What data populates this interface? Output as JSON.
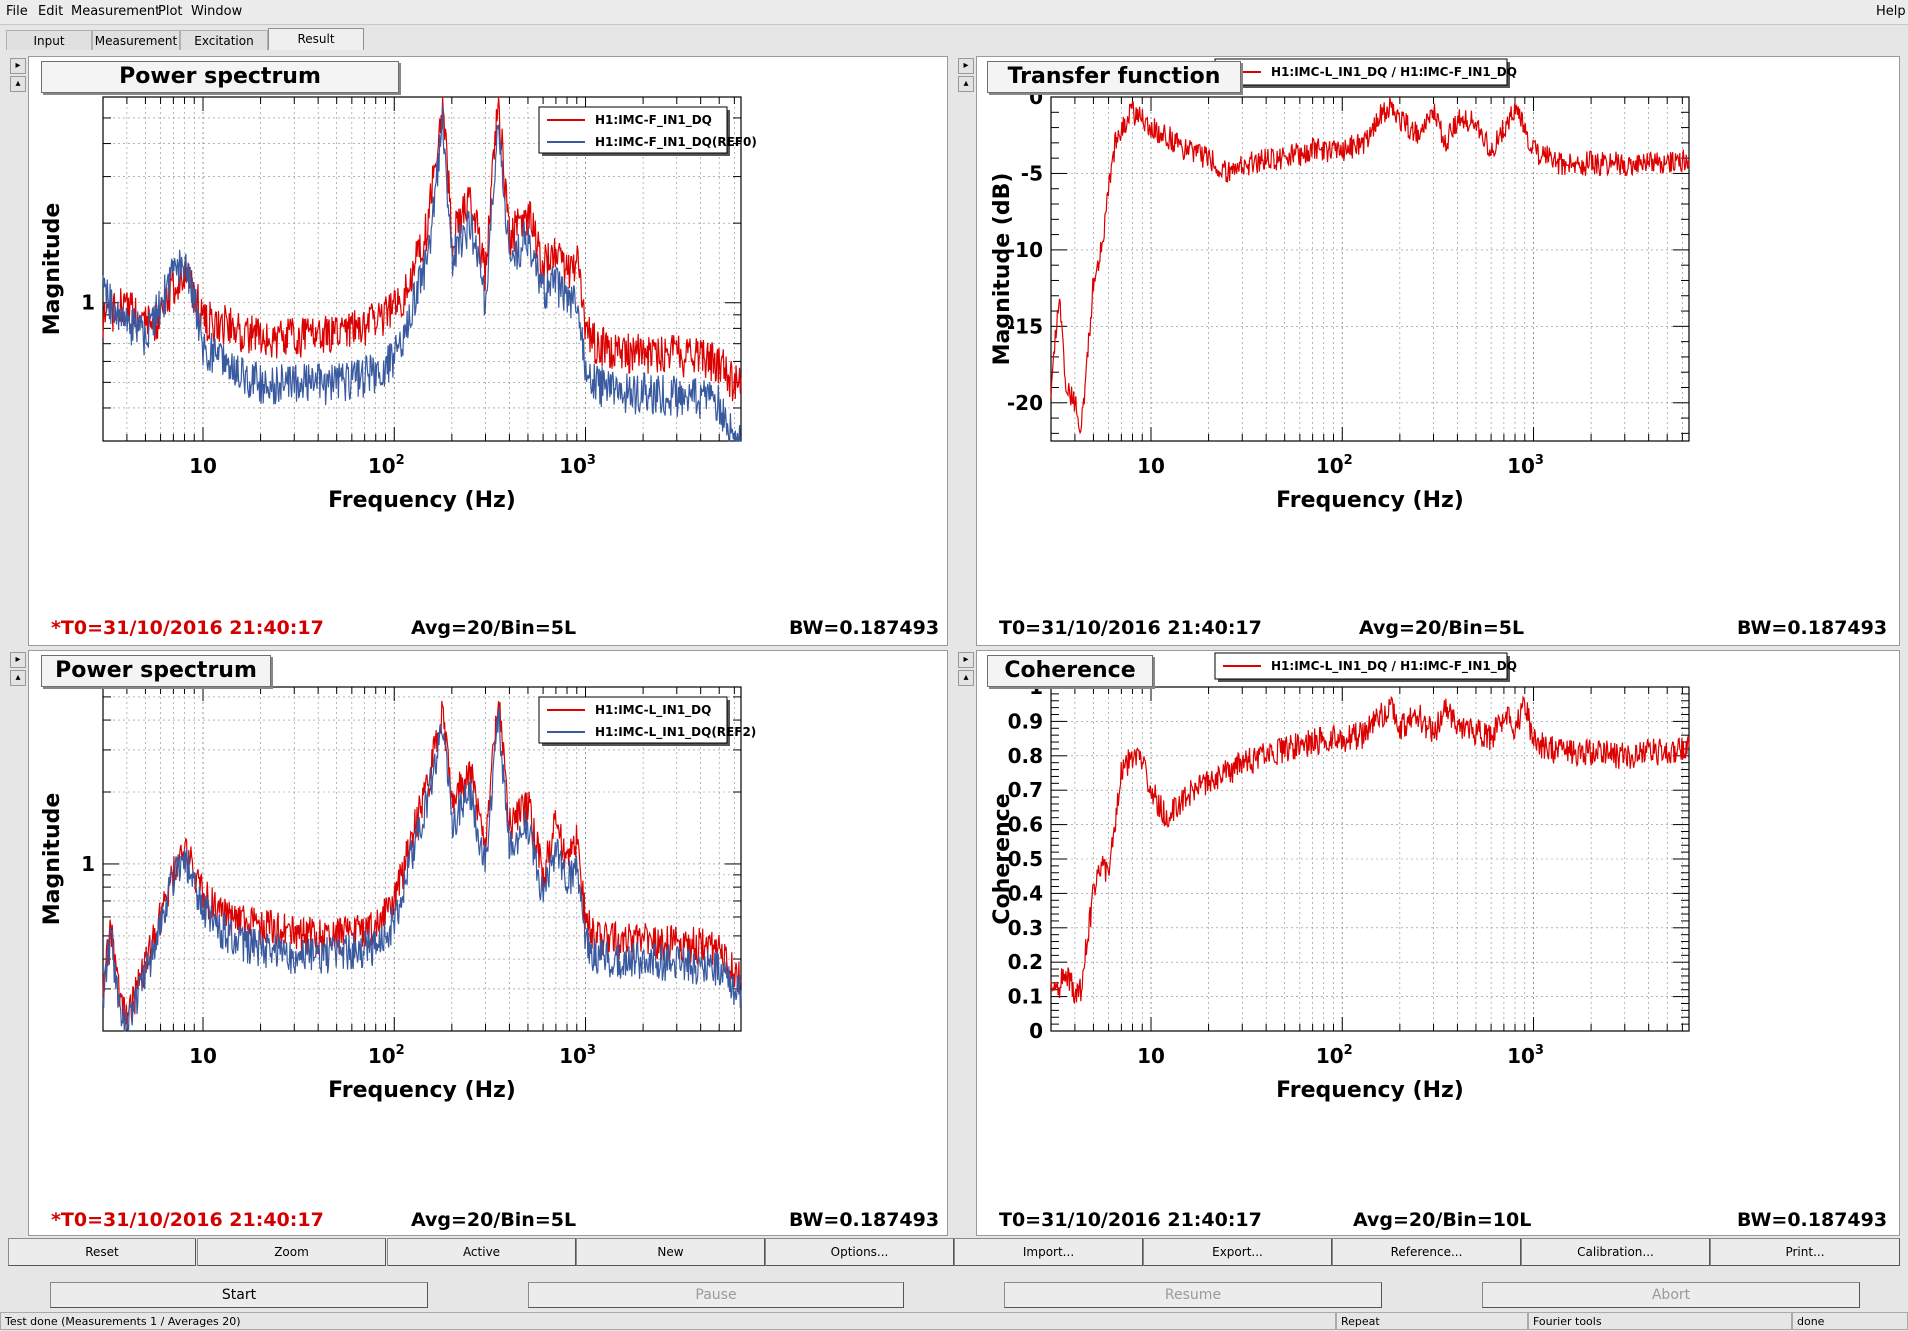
{
  "menu": {
    "file": "File",
    "edit": "Edit",
    "measurement": "Measurement",
    "plot": "Plot",
    "window": "Window",
    "help": "Help"
  },
  "tabs": [
    "Input",
    "Measurement",
    "Excitation",
    "Result"
  ],
  "panels": [
    {
      "title": "Power spectrum",
      "footer_time": "*T0=31/10/2016 21:40:17",
      "footer_avg": "Avg=20/Bin=5L",
      "footer_bw": "BW=0.187493",
      "time_red": true
    },
    {
      "title": "Transfer function",
      "footer_time": "T0=31/10/2016 21:40:17",
      "footer_avg": "Avg=20/Bin=5L",
      "footer_bw": "BW=0.187493",
      "time_red": false
    },
    {
      "title": "Power spectrum",
      "footer_time": "*T0=31/10/2016 21:40:17",
      "footer_avg": "Avg=20/Bin=5L",
      "footer_bw": "BW=0.187493",
      "time_red": true
    },
    {
      "title": "Coherence",
      "footer_time": "T0=31/10/2016 21:40:17",
      "footer_avg": "Avg=20/Bin=10L",
      "footer_bw": "BW=0.187493",
      "time_red": false
    }
  ],
  "chart_data": [
    {
      "type": "line",
      "xscale": "log",
      "yscale": "log",
      "xlabel": "Frequency (Hz)",
      "ylabel": "Magnitude",
      "xlim": [
        3,
        6500
      ],
      "xticks": [
        "10",
        "10^2",
        "10^3"
      ],
      "yticks": [
        "1"
      ],
      "grid": true,
      "legend": "top-right",
      "series": [
        {
          "name": "H1:IMC-F_IN1_DQ",
          "color": "#dd0000",
          "x": [
            3,
            4,
            5,
            6,
            7,
            8,
            9,
            10,
            12,
            15,
            20,
            30,
            50,
            80,
            100,
            120,
            150,
            180,
            200,
            250,
            300,
            350,
            400,
            500,
            600,
            700,
            800,
            900,
            1000,
            1100,
            1500,
            2000,
            3000,
            4000,
            5000,
            6000
          ],
          "y": [
            0.9,
            1.0,
            0.82,
            0.9,
            1.15,
            1.35,
            1.1,
            0.88,
            0.85,
            0.8,
            0.75,
            0.75,
            0.78,
            0.85,
            0.95,
            1.2,
            2.0,
            6.0,
            1.8,
            2.5,
            1.3,
            6.0,
            1.8,
            2.2,
            1.4,
            1.6,
            1.3,
            1.5,
            0.8,
            0.72,
            0.65,
            0.65,
            0.64,
            0.62,
            0.6,
            0.5
          ]
        },
        {
          "name": "H1:IMC-F_IN1_DQ(REF0)",
          "color": "#3a5aa0",
          "x": [
            3,
            4,
            5,
            6,
            7,
            8,
            9,
            10,
            12,
            15,
            20,
            30,
            50,
            80,
            100,
            120,
            150,
            180,
            200,
            250,
            300,
            350,
            400,
            500,
            600,
            700,
            800,
            900,
            1000,
            1100,
            1500,
            2000,
            3000,
            4000,
            5000,
            6000
          ],
          "y": [
            1.1,
            0.85,
            0.75,
            1.0,
            1.3,
            1.4,
            1.05,
            0.7,
            0.62,
            0.55,
            0.5,
            0.5,
            0.5,
            0.55,
            0.62,
            0.9,
            1.5,
            5.0,
            1.5,
            2.0,
            1.0,
            5.0,
            1.5,
            1.8,
            1.1,
            1.2,
            1.0,
            1.1,
            0.55,
            0.5,
            0.46,
            0.46,
            0.45,
            0.44,
            0.42,
            0.3
          ]
        }
      ]
    },
    {
      "type": "line",
      "xscale": "log",
      "xlabel": "Frequency (Hz)",
      "ylabel": "Magnitude (dB)",
      "xlim": [
        3,
        6500
      ],
      "ylim": [
        -22.5,
        0
      ],
      "xticks": [
        "10",
        "10^2",
        "10^3"
      ],
      "yticks": [
        0,
        -5,
        -10,
        -15,
        -20
      ],
      "grid": true,
      "legend": "top-right",
      "series": [
        {
          "name": "H1:IMC-L_IN1_DQ / H1:IMC-F_IN1_DQ",
          "color": "#dd0000",
          "x": [
            3,
            3.3,
            3.6,
            4,
            4.3,
            4.6,
            5,
            5.5,
            6,
            6.5,
            7,
            8,
            9,
            10,
            12,
            15,
            20,
            25,
            30,
            40,
            50,
            70,
            100,
            130,
            150,
            180,
            200,
            250,
            300,
            350,
            400,
            500,
            600,
            700,
            800,
            900,
            1000,
            1200,
            1500,
            2000,
            3000,
            4000,
            5000,
            6000
          ],
          "y": [
            -19,
            -13,
            -19,
            -20,
            -22,
            -18,
            -12,
            -10,
            -6,
            -3,
            -2,
            -1,
            -1.5,
            -2,
            -2.5,
            -3.5,
            -4,
            -5,
            -4.5,
            -4,
            -4,
            -3.5,
            -3.5,
            -3,
            -1.5,
            -0.5,
            -1.5,
            -2.5,
            -1,
            -3,
            -1.5,
            -1.5,
            -3.5,
            -2,
            -1,
            -2,
            -3.5,
            -4,
            -4.5,
            -4.3,
            -4.4,
            -4.3,
            -4.2,
            -4.1
          ]
        }
      ]
    },
    {
      "type": "line",
      "xscale": "log",
      "yscale": "log",
      "xlabel": "Frequency (Hz)",
      "ylabel": "Magnitude",
      "xlim": [
        3,
        6500
      ],
      "xticks": [
        "10",
        "10^2",
        "10^3"
      ],
      "yticks": [
        "1"
      ],
      "grid": true,
      "legend": "top-right",
      "series": [
        {
          "name": "H1:IMC-L_IN1_DQ",
          "color": "#dd0000",
          "x": [
            3,
            3.3,
            3.6,
            4,
            4.5,
            5,
            6,
            7,
            8,
            9,
            10,
            12,
            15,
            20,
            30,
            50,
            80,
            100,
            120,
            150,
            180,
            200,
            250,
            300,
            350,
            400,
            500,
            600,
            700,
            800,
            900,
            1000,
            1100,
            1500,
            2000,
            3000,
            4000,
            5000,
            6000
          ],
          "y": [
            0.3,
            0.55,
            0.3,
            0.22,
            0.3,
            0.38,
            0.6,
            0.95,
            1.2,
            0.95,
            0.75,
            0.65,
            0.58,
            0.55,
            0.52,
            0.5,
            0.55,
            0.7,
            1.2,
            2.2,
            4.5,
            1.8,
            2.5,
            1.2,
            5.0,
            1.5,
            1.8,
            0.9,
            1.5,
            1.0,
            1.3,
            0.6,
            0.5,
            0.48,
            0.48,
            0.47,
            0.46,
            0.44,
            0.35
          ]
        },
        {
          "name": "H1:IMC-L_IN1_DQ(REF2)",
          "color": "#3a5aa0",
          "x": [
            3,
            3.3,
            3.6,
            4,
            4.5,
            5,
            6,
            7,
            8,
            9,
            10,
            12,
            15,
            20,
            30,
            50,
            80,
            100,
            120,
            150,
            180,
            200,
            250,
            300,
            350,
            400,
            500,
            600,
            700,
            800,
            900,
            1000,
            1100,
            1500,
            2000,
            3000,
            4000,
            5000,
            6000
          ],
          "y": [
            0.28,
            0.52,
            0.26,
            0.2,
            0.28,
            0.35,
            0.55,
            0.88,
            1.05,
            0.85,
            0.65,
            0.55,
            0.48,
            0.45,
            0.42,
            0.42,
            0.46,
            0.58,
            1.0,
            1.9,
            4.0,
            1.5,
            2.0,
            1.0,
            4.5,
            1.2,
            1.5,
            0.75,
            1.2,
            0.85,
            1.0,
            0.48,
            0.42,
            0.4,
            0.4,
            0.39,
            0.38,
            0.37,
            0.3
          ]
        }
      ]
    },
    {
      "type": "line",
      "xscale": "log",
      "xlabel": "Frequency (Hz)",
      "ylabel": "Coherence",
      "xlim": [
        3,
        6500
      ],
      "ylim": [
        0,
        1
      ],
      "xticks": [
        "10",
        "10^2",
        "10^3"
      ],
      "yticks": [
        0,
        0.1,
        0.2,
        0.3,
        0.4,
        0.5,
        0.6,
        0.7,
        0.8,
        0.9,
        1
      ],
      "grid": true,
      "legend": "top-right",
      "series": [
        {
          "name": "H1:IMC-L_IN1_DQ / H1:IMC-F_IN1_DQ",
          "color": "#dd0000",
          "x": [
            3,
            3.3,
            3.6,
            4,
            4.3,
            4.6,
            5,
            5.5,
            6,
            6.5,
            7,
            8,
            9,
            10,
            12,
            15,
            20,
            25,
            30,
            40,
            50,
            70,
            100,
            130,
            150,
            180,
            200,
            250,
            300,
            350,
            400,
            500,
            600,
            700,
            800,
            900,
            1000,
            1200,
            1500,
            2000,
            3000,
            4000,
            5000,
            6000
          ],
          "y": [
            0.15,
            0.12,
            0.18,
            0.1,
            0.12,
            0.25,
            0.4,
            0.5,
            0.45,
            0.6,
            0.75,
            0.8,
            0.78,
            0.7,
            0.62,
            0.68,
            0.72,
            0.75,
            0.78,
            0.8,
            0.82,
            0.84,
            0.85,
            0.86,
            0.9,
            0.95,
            0.88,
            0.92,
            0.86,
            0.95,
            0.88,
            0.87,
            0.85,
            0.92,
            0.88,
            0.95,
            0.84,
            0.82,
            0.81,
            0.81,
            0.8,
            0.81,
            0.81,
            0.82
          ]
        }
      ]
    }
  ],
  "buttons": [
    "Reset",
    "Zoom",
    "Active",
    "New",
    "Options...",
    "Import...",
    "Export...",
    "Reference...",
    "Calibration...",
    "Print..."
  ],
  "controls": [
    "Start",
    "Pause",
    "Resume",
    "Abort"
  ],
  "status": {
    "main": "Test done (Measurements 1 / Averages 20)",
    "repeat": "Repeat",
    "fourier": "Fourier tools",
    "done": "done"
  }
}
